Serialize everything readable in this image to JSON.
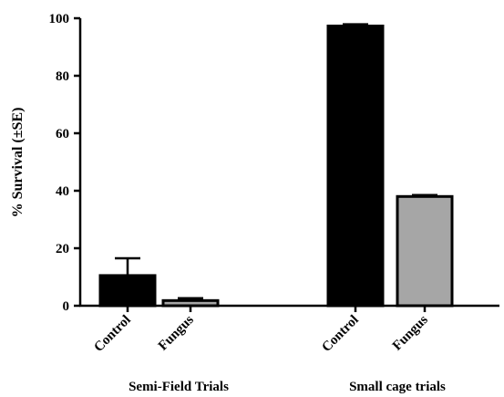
{
  "chart_data": {
    "type": "bar",
    "title": "",
    "xlabel": "",
    "ylabel": "% Survival (±SE)",
    "ylim": [
      0,
      100
    ],
    "yticks": [
      0,
      20,
      40,
      60,
      80,
      100
    ],
    "grid": false,
    "legend": "none",
    "groups": [
      {
        "label": "Semi-Field Trials",
        "bars": [
          {
            "category": "Control",
            "value": 10.5,
            "error": 6.0,
            "color": "#000000"
          },
          {
            "category": "Fungus",
            "value": 1.8,
            "error": 0.8,
            "color": "#a6a6a6"
          }
        ]
      },
      {
        "label": "Small cage trials",
        "bars": [
          {
            "category": "Control",
            "value": 97.3,
            "error": 0.6,
            "color": "#000000"
          },
          {
            "category": "Fungus",
            "value": 38.0,
            "error": 0.5,
            "color": "#a6a6a6"
          }
        ]
      }
    ]
  }
}
